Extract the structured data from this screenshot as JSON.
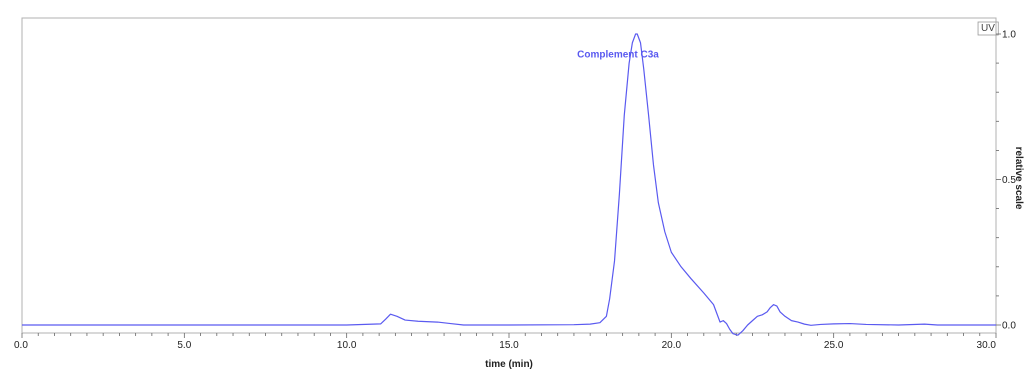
{
  "chart_data": {
    "type": "line",
    "xlabel": "time (min)",
    "ylabel": "relative scale",
    "legend": "UV",
    "legend_position": "top-right",
    "x_ticks": [
      "0.0",
      "5.0",
      "10.0",
      "15.0",
      "20.0",
      "25.0",
      "30.0"
    ],
    "x_tick_values": [
      0,
      5,
      10,
      15,
      20,
      25,
      30
    ],
    "y_ticks": [
      "0.0",
      "0.5",
      "1.0"
    ],
    "y_tick_values": [
      0,
      0.5,
      1.0
    ],
    "xlim": [
      0,
      30
    ],
    "ylim": [
      -0.04,
      1.02
    ],
    "grid": false,
    "series_color": "#5a5af0",
    "annotations": [
      {
        "text": "Complement C3a",
        "x": 17.1,
        "y": 0.92
      }
    ],
    "series": [
      {
        "x": [
          0,
          5,
          10,
          11.05,
          11.2,
          11.35,
          11.55,
          11.8,
          12.2,
          12.8,
          13.2,
          13.6,
          15,
          17,
          17.5,
          17.8,
          18.0,
          18.1,
          18.25,
          18.4,
          18.55,
          18.7,
          18.8,
          18.9,
          18.95,
          19.05,
          19.15,
          19.3,
          19.45,
          19.6,
          19.8,
          20.0,
          20.3,
          20.6,
          21.0,
          21.3,
          21.4,
          21.5,
          21.6,
          21.7,
          21.8,
          21.9,
          22.05,
          22.2,
          22.35,
          22.5,
          22.65,
          22.8,
          22.95,
          23.05,
          23.15,
          23.25,
          23.35,
          23.5,
          23.7,
          23.9,
          24.1,
          24.3,
          24.6,
          25.0,
          25.5,
          26.0,
          27.0,
          27.8,
          28.2,
          29,
          30
        ],
        "y": [
          0.0,
          0.0,
          0.0,
          0.004,
          0.02,
          0.037,
          0.03,
          0.017,
          0.013,
          0.01,
          0.005,
          0.0,
          0.0,
          0.001,
          0.003,
          0.008,
          0.03,
          0.09,
          0.22,
          0.45,
          0.72,
          0.9,
          0.97,
          1.0,
          1.0,
          0.97,
          0.88,
          0.72,
          0.55,
          0.42,
          0.32,
          0.25,
          0.2,
          0.16,
          0.11,
          0.07,
          0.04,
          0.01,
          0.015,
          0.005,
          -0.015,
          -0.03,
          -0.035,
          -0.02,
          0.0,
          0.015,
          0.03,
          0.035,
          0.045,
          0.06,
          0.07,
          0.065,
          0.045,
          0.03,
          0.015,
          0.01,
          0.003,
          -0.001,
          0.002,
          0.004,
          0.005,
          0.002,
          0.0,
          0.003,
          0.0,
          0.0,
          0.0
        ]
      }
    ]
  }
}
